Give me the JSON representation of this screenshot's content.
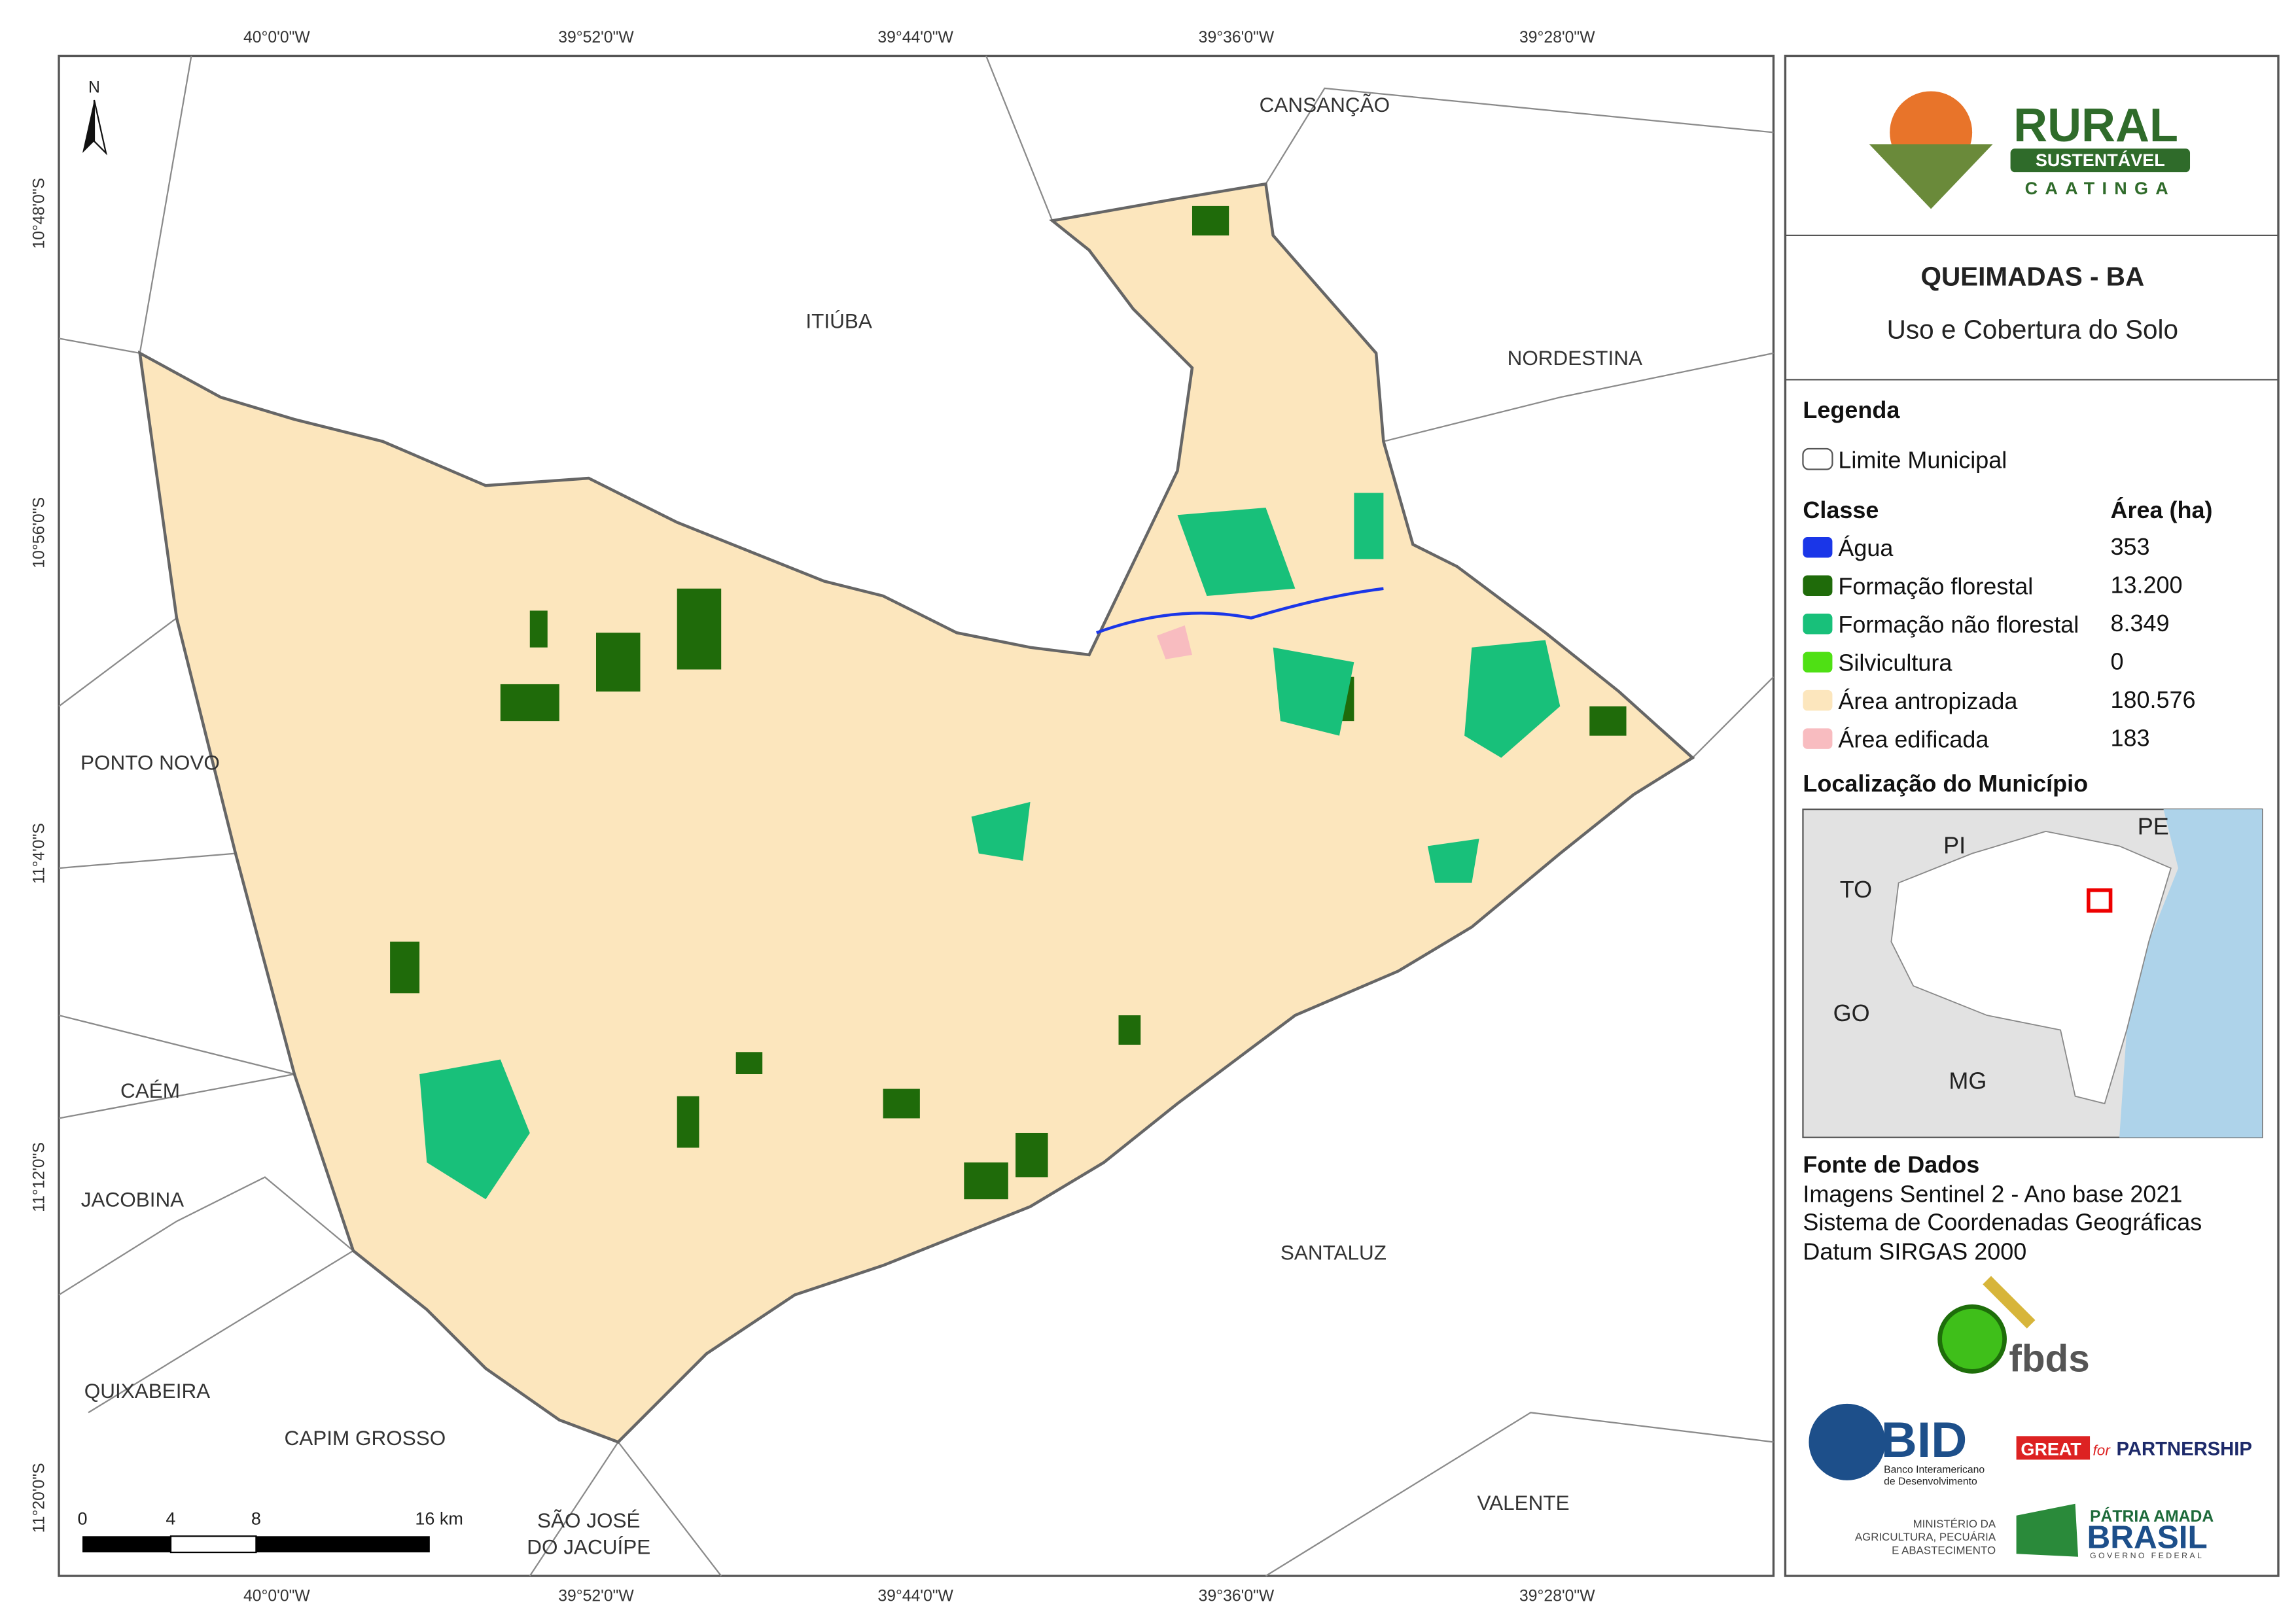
{
  "header": {
    "logo": {
      "name": "RURAL",
      "tag": "SUSTENTÁVEL",
      "sub": "CAATINGA"
    },
    "title": "QUEIMADAS - BA",
    "subtitle": "Uso e Cobertura do Solo"
  },
  "legend": {
    "title": "Legenda",
    "boundary": "Limite Municipal",
    "class_header": "Classe",
    "area_header": "Área (ha)",
    "classes": [
      {
        "label": "Água",
        "area": "353",
        "color": "#1a36e8"
      },
      {
        "label": "Formação florestal",
        "area": "13.200",
        "color": "#1f6b0a"
      },
      {
        "label": "Formação não florestal",
        "area": "8.349",
        "color": "#18c07a"
      },
      {
        "label": "Silvicultura",
        "area": "0",
        "color": "#4fe014"
      },
      {
        "label": "Área antropizada",
        "area": "180.576",
        "color": "#fce6bd"
      },
      {
        "label": "Área edificada",
        "area": "183",
        "color": "#f8bcc0"
      }
    ]
  },
  "location": {
    "title": "Localização do Município",
    "states": [
      "PI",
      "PE",
      "TO",
      "GO",
      "MG"
    ]
  },
  "sources": {
    "title": "Fonte de Dados",
    "lines": [
      "Imagens Sentinel 2 - Ano base 2021",
      "Sistema de Coordenadas Geográficas",
      "Datum SIRGAS 2000"
    ]
  },
  "map": {
    "north": "N",
    "places": [
      "CANSANÇÃO",
      "ITIÚBA",
      "NORDESTINA",
      "PONTO NOVO",
      "CAÉM",
      "JACOBINA",
      "QUIXABEIRA",
      "CAPIM GROSSO",
      "SÃO JOSÉ",
      "DO JACUÍPE",
      "SANTALUZ",
      "VALENTE"
    ],
    "lon_ticks": [
      "40°0'0\"W",
      "39°52'0\"W",
      "39°44'0\"W",
      "39°36'0\"W",
      "39°28'0\"W"
    ],
    "lat_ticks": [
      "10°48'0\"S",
      "10°56'0\"S",
      "11°4'0\"S",
      "11°12'0\"S",
      "11°20'0\"S"
    ],
    "scale": [
      "0",
      "4",
      "8",
      "16 km"
    ]
  },
  "partners": {
    "fbds": "fbds",
    "bid": "BID",
    "bid_name": [
      "Banco Interamericano",
      "de Desenvolvimento"
    ],
    "great": "GREAT",
    "for": "for",
    "partnership": "PARTNERSHIP",
    "ministry": [
      "MINISTÉRIO DA",
      "AGRICULTURA, PECUÁRIA",
      "E ABASTECIMENTO"
    ],
    "patria": "PÁTRIA AMADA",
    "brasil": "BRASIL",
    "gov": "GOVERNO FEDERAL"
  }
}
